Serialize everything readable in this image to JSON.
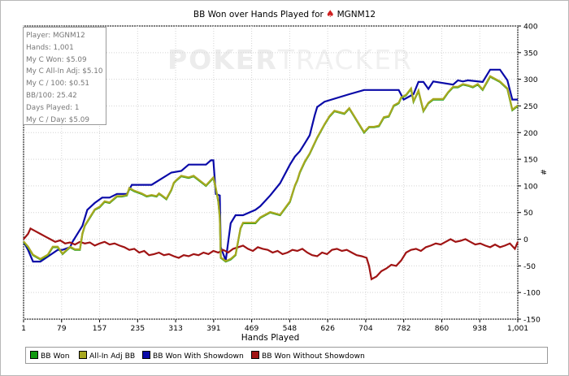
{
  "title": {
    "prefix": "BB Won over Hands Played for",
    "player": "MGNM12",
    "icon": "spade-poker-icon"
  },
  "watermark": {
    "bold": "POKER",
    "light": "TRACKER"
  },
  "stats": [
    "Player: MGNM12",
    "Hands: 1,001",
    "My C Won: $5.09",
    "My C All-In Adj: $5.10",
    "My C / 100: $0.51",
    "BB/100: 25.42",
    "Days Played: 1",
    "My C / Day: $5.09"
  ],
  "legend": [
    {
      "label": "BB Won",
      "color": "#119911"
    },
    {
      "label": "All-In Adj BB",
      "color": "#a8a820"
    },
    {
      "label": "BB Won With Showdown",
      "color": "#0a0aa8"
    },
    {
      "label": "BB Won Without Showdown",
      "color": "#a01414"
    }
  ],
  "chart_data": {
    "type": "line",
    "title": "BB Won over Hands Played for MGNM12",
    "xlabel": "Hands Played",
    "ylabel": "#",
    "xlim": [
      1,
      1001
    ],
    "ylim": [
      -150,
      400
    ],
    "x_ticks": [
      "1",
      "79",
      "157",
      "235",
      "313",
      "391",
      "469",
      "548",
      "626",
      "704",
      "782",
      "860",
      "938",
      "1,001"
    ],
    "y_ticks": [
      400,
      350,
      300,
      250,
      200,
      150,
      100,
      50,
      0,
      -50,
      -100,
      -150
    ],
    "grid": true,
    "legend_position": "bottom",
    "series": [
      {
        "name": "BB Won With Showdown",
        "color": "#0a0aa8",
        "x": [
          1,
          10,
          20,
          35,
          70,
          80,
          95,
          100,
          120,
          130,
          145,
          160,
          175,
          190,
          210,
          220,
          225,
          255,
          260,
          300,
          320,
          335,
          345,
          370,
          380,
          385,
          390,
          398,
          400,
          410,
          420,
          430,
          440,
          445,
          470,
          480,
          500,
          520,
          540,
          550,
          560,
          570,
          580,
          590,
          595,
          610,
          660,
          690,
          720,
          760,
          770,
          790,
          800,
          810,
          820,
          830,
          870,
          880,
          890,
          900,
          930,
          945,
          965,
          980,
          990,
          1001
        ],
        "y": [
          -5,
          -20,
          -42,
          -42,
          -20,
          -20,
          -15,
          -5,
          25,
          55,
          68,
          78,
          78,
          85,
          85,
          102,
          102,
          102,
          102,
          125,
          128,
          140,
          140,
          140,
          148,
          148,
          85,
          82,
          -15,
          -40,
          30,
          45,
          45,
          45,
          55,
          62,
          82,
          105,
          140,
          155,
          165,
          180,
          195,
          232,
          248,
          258,
          272,
          280,
          280,
          280,
          262,
          272,
          295,
          295,
          282,
          296,
          290,
          298,
          296,
          298,
          295,
          318,
          318,
          298,
          262,
          262
        ]
      },
      {
        "name": "BB Won",
        "color": "#119911",
        "x": [
          1,
          10,
          20,
          35,
          50,
          60,
          70,
          80,
          95,
          105,
          115,
          120,
          125,
          135,
          145,
          155,
          165,
          175,
          190,
          200,
          210,
          215,
          225,
          240,
          250,
          260,
          270,
          275,
          280,
          290,
          300,
          305,
          310,
          320,
          335,
          345,
          370,
          385,
          390,
          395,
          398,
          400,
          410,
          420,
          430,
          440,
          445,
          470,
          480,
          500,
          520,
          540,
          550,
          555,
          560,
          570,
          580,
          595,
          610,
          620,
          630,
          650,
          660,
          670,
          690,
          700,
          710,
          720,
          730,
          740,
          750,
          760,
          765,
          775,
          785,
          790,
          800,
          810,
          820,
          830,
          840,
          850,
          860,
          870,
          880,
          890,
          900,
          910,
          920,
          930,
          945,
          955,
          965,
          980,
          990,
          1001
        ],
        "y": [
          -5,
          -15,
          -30,
          -38,
          -30,
          -15,
          -15,
          -28,
          -15,
          -20,
          -20,
          10,
          25,
          40,
          55,
          60,
          70,
          68,
          80,
          80,
          82,
          95,
          90,
          85,
          80,
          82,
          80,
          85,
          82,
          75,
          92,
          105,
          110,
          118,
          115,
          118,
          100,
          115,
          95,
          70,
          40,
          -35,
          -42,
          -38,
          -30,
          20,
          30,
          30,
          40,
          50,
          45,
          70,
          100,
          110,
          125,
          145,
          160,
          190,
          215,
          230,
          240,
          235,
          245,
          230,
          200,
          210,
          210,
          212,
          228,
          230,
          250,
          255,
          265,
          270,
          282,
          258,
          278,
          240,
          255,
          262,
          262,
          262,
          275,
          285,
          285,
          290,
          288,
          285,
          290,
          280,
          305,
          300,
          295,
          282,
          242,
          250
        ]
      },
      {
        "name": "All-In Adj BB",
        "color": "#a8a820",
        "x": [
          1,
          10,
          20,
          35,
          50,
          60,
          70,
          80,
          95,
          105,
          115,
          120,
          125,
          135,
          145,
          155,
          165,
          175,
          190,
          200,
          210,
          215,
          225,
          240,
          250,
          260,
          270,
          275,
          280,
          290,
          300,
          305,
          310,
          320,
          335,
          345,
          370,
          385,
          390,
          395,
          398,
          400,
          410,
          420,
          430,
          440,
          445,
          470,
          480,
          500,
          520,
          540,
          550,
          555,
          560,
          570,
          580,
          595,
          610,
          620,
          630,
          650,
          660,
          670,
          690,
          700,
          710,
          720,
          730,
          740,
          750,
          760,
          765,
          775,
          785,
          790,
          800,
          810,
          820,
          830,
          840,
          850,
          860,
          870,
          880,
          890,
          900,
          910,
          920,
          930,
          945,
          955,
          965,
          980,
          990,
          1001
        ],
        "y": [
          -4,
          -14,
          -29,
          -37,
          -29,
          -14,
          -14,
          -27,
          -14,
          -19,
          -19,
          11,
          26,
          41,
          56,
          61,
          71,
          69,
          81,
          81,
          83,
          96,
          91,
          86,
          81,
          83,
          81,
          86,
          83,
          76,
          93,
          106,
          111,
          119,
          116,
          119,
          101,
          116,
          96,
          71,
          41,
          -34,
          -41,
          -37,
          -29,
          21,
          31,
          31,
          41,
          51,
          46,
          71,
          101,
          111,
          126,
          146,
          161,
          191,
          216,
          231,
          241,
          236,
          246,
          231,
          201,
          211,
          211,
          213,
          229,
          231,
          251,
          256,
          266,
          271,
          283,
          259,
          279,
          241,
          256,
          263,
          263,
          263,
          276,
          286,
          286,
          291,
          289,
          286,
          291,
          281,
          306,
          301,
          296,
          283,
          243,
          251
        ]
      },
      {
        "name": "BB Won Without Showdown",
        "color": "#a01414",
        "x": [
          1,
          10,
          15,
          25,
          35,
          45,
          55,
          65,
          75,
          85,
          95,
          105,
          115,
          125,
          135,
          145,
          155,
          165,
          175,
          185,
          195,
          205,
          215,
          225,
          235,
          245,
          255,
          265,
          275,
          285,
          295,
          305,
          315,
          325,
          335,
          345,
          355,
          365,
          375,
          385,
          395,
          405,
          415,
          425,
          435,
          445,
          455,
          465,
          475,
          485,
          495,
          505,
          515,
          525,
          535,
          545,
          555,
          565,
          575,
          585,
          595,
          605,
          615,
          625,
          635,
          645,
          655,
          665,
          675,
          685,
          695,
          700,
          705,
          715,
          725,
          735,
          745,
          755,
          765,
          775,
          785,
          795,
          805,
          815,
          825,
          835,
          845,
          855,
          865,
          875,
          885,
          895,
          905,
          915,
          925,
          935,
          945,
          955,
          965,
          975,
          985,
          995,
          1001
        ],
        "y": [
          0,
          10,
          20,
          15,
          10,
          5,
          0,
          -5,
          -2,
          -8,
          -6,
          -10,
          -5,
          -8,
          -6,
          -12,
          -8,
          -5,
          -10,
          -8,
          -12,
          -15,
          -20,
          -18,
          -25,
          -22,
          -30,
          -28,
          -25,
          -30,
          -28,
          -32,
          -35,
          -30,
          -32,
          -28,
          -30,
          -25,
          -28,
          -22,
          -25,
          -20,
          -25,
          -18,
          -15,
          -12,
          -18,
          -22,
          -15,
          -18,
          -20,
          -25,
          -22,
          -28,
          -25,
          -20,
          -22,
          -18,
          -25,
          -30,
          -32,
          -25,
          -28,
          -20,
          -18,
          -22,
          -20,
          -25,
          -30,
          -32,
          -35,
          -50,
          -75,
          -70,
          -60,
          -55,
          -48,
          -50,
          -40,
          -25,
          -20,
          -18,
          -22,
          -15,
          -12,
          -8,
          -10,
          -5,
          0,
          -5,
          -3,
          0,
          -5,
          -10,
          -8,
          -12,
          -15,
          -10,
          -15,
          -12,
          -8,
          -18,
          -5
        ]
      }
    ]
  }
}
